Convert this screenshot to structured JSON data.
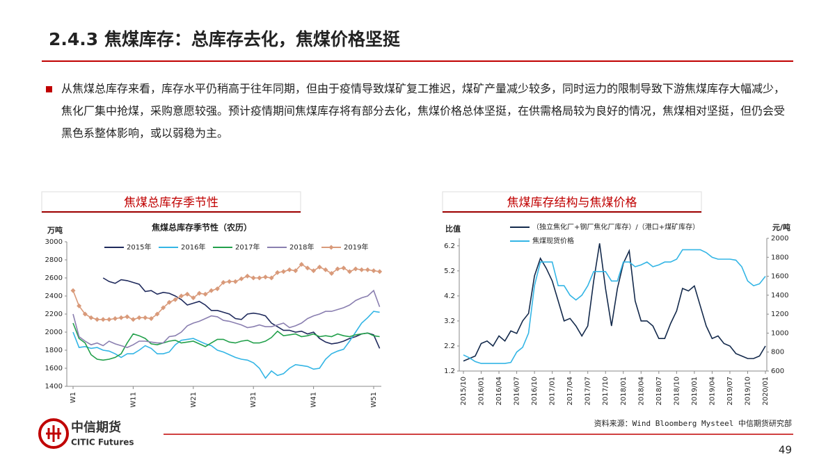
{
  "header": {
    "title": "2.4.3 焦煤库存：总库存去化，焦煤价格坚挺"
  },
  "bullet": "从焦煤总库存来看，库存水平仍稍高于往年同期，但由于疫情导致煤矿复工推迟，煤矿产量减少较多，同时运力的限制导致下游焦煤库存大幅减少，焦化厂集中抢煤，采购意愿较强。预计疫情期间焦煤库存将有部分去化，焦煤价格总体坚挺，在供需格局较为良好的情况，焦煤相对坚挺，但仍会受黑色系整体影响，或以弱稳为主。",
  "panels": [
    {
      "heading": "焦煤总库存季节性"
    },
    {
      "heading": "焦煤库存结构与焦煤价格"
    }
  ],
  "chart_data": [
    {
      "type": "line",
      "title": "焦煤总库存季节性（农历）",
      "y_label": "万吨",
      "categories": [
        "W1",
        null,
        null,
        null,
        null,
        null,
        null,
        null,
        null,
        null,
        "W11",
        null,
        null,
        null,
        null,
        null,
        null,
        null,
        null,
        null,
        "W21",
        null,
        null,
        null,
        null,
        null,
        null,
        null,
        null,
        null,
        "W31",
        null,
        null,
        null,
        null,
        null,
        null,
        null,
        null,
        null,
        "W41",
        null,
        null,
        null,
        null,
        null,
        null,
        null,
        null,
        null,
        "W51",
        null
      ],
      "ylim": [
        1400,
        3000
      ],
      "yticks": [
        1400,
        1600,
        1800,
        2000,
        2200,
        2400,
        2600,
        2800,
        3000
      ],
      "series": [
        {
          "name": "2015年",
          "color": "#1f2a5c",
          "values": [
            null,
            null,
            null,
            null,
            null,
            2600,
            2560,
            2540,
            2580,
            2570,
            2550,
            2530,
            2450,
            2460,
            2420,
            2440,
            2430,
            2400,
            2360,
            2300,
            2320,
            2340,
            2300,
            2240,
            2240,
            2220,
            2200,
            2150,
            2140,
            2200,
            2210,
            2200,
            2180,
            2100,
            2060,
            2020,
            2020,
            2000,
            2010,
            1980,
            2000,
            1930,
            1890,
            1870,
            1880,
            1900,
            1930,
            1950,
            1980,
            1990,
            1970,
            1820
          ]
        },
        {
          "name": "2016年",
          "color": "#33b5e5",
          "values": [
            2000,
            1830,
            1840,
            1820,
            1830,
            1800,
            1790,
            1760,
            1720,
            1760,
            1760,
            1800,
            1850,
            1820,
            1760,
            1760,
            1780,
            1860,
            1910,
            1920,
            1930,
            1900,
            1870,
            1850,
            1800,
            1780,
            1750,
            1720,
            1700,
            1690,
            1660,
            1600,
            1490,
            1570,
            1520,
            1540,
            1600,
            1640,
            1630,
            1620,
            1590,
            1600,
            1700,
            1760,
            1790,
            1810,
            1900,
            2000,
            2100,
            2160,
            2230,
            2220
          ]
        },
        {
          "name": "2017年",
          "color": "#22a04b",
          "values": [
            2100,
            1930,
            1880,
            1750,
            1700,
            1690,
            1700,
            1720,
            1760,
            1880,
            1980,
            1960,
            1930,
            1870,
            1860,
            1880,
            1900,
            1910,
            1880,
            1890,
            1900,
            1870,
            1840,
            1880,
            1920,
            1920,
            1890,
            1880,
            1900,
            1910,
            1880,
            1880,
            1900,
            1940,
            2010,
            1960,
            1970,
            1980,
            1950,
            1960,
            1980,
            1950,
            1960,
            1950,
            1980,
            1960,
            1950,
            1970,
            1980,
            1990,
            1960,
            1950
          ]
        },
        {
          "name": "2018年",
          "color": "#8a7fb0",
          "values": [
            2200,
            1950,
            1900,
            1860,
            1880,
            1850,
            1900,
            1870,
            1850,
            1830,
            1860,
            1900,
            1900,
            1890,
            1880,
            1880,
            1950,
            1960,
            2000,
            2070,
            2100,
            2120,
            2150,
            2180,
            2170,
            2130,
            2120,
            2100,
            2080,
            2050,
            2060,
            2080,
            2060,
            2060,
            2080,
            2100,
            2050,
            2070,
            2100,
            2150,
            2180,
            2200,
            2230,
            2230,
            2250,
            2270,
            2300,
            2350,
            2380,
            2400,
            2460,
            2280
          ]
        },
        {
          "name": "2019年",
          "color": "#d99a7a",
          "marker": "diamond",
          "values": [
            2460,
            2290,
            2200,
            2160,
            2140,
            2140,
            2140,
            2150,
            2160,
            2170,
            2140,
            2160,
            2160,
            2150,
            2200,
            2270,
            2330,
            2360,
            2400,
            2420,
            2380,
            2430,
            2420,
            2460,
            2480,
            2550,
            2560,
            2560,
            2590,
            2620,
            2600,
            2600,
            2610,
            2600,
            2660,
            2670,
            2690,
            2680,
            2750,
            2710,
            2680,
            2720,
            2690,
            2650,
            2700,
            2710,
            2670,
            2700,
            2690,
            2690,
            2680,
            2670
          ]
        }
      ]
    },
    {
      "type": "line",
      "y_label": "比值",
      "y2_label": "元/吨",
      "categories": [
        "2015/10",
        null,
        null,
        "2016/01",
        null,
        null,
        "2016/04",
        null,
        null,
        "2016/07",
        null,
        null,
        "2016/10",
        null,
        null,
        "2017/01",
        null,
        null,
        "2017/04",
        null,
        null,
        "2017/07",
        null,
        null,
        "2017/10",
        null,
        null,
        "2018/01",
        null,
        null,
        "2018/04",
        null,
        null,
        "2018/07",
        null,
        null,
        "2018/10",
        null,
        null,
        "2019/01",
        null,
        null,
        "2019/04",
        null,
        null,
        "2019/07",
        null,
        null,
        "2019/10",
        null,
        null,
        "2020/01"
      ],
      "ylim": [
        1.2,
        6.5
      ],
      "yticks": [
        1.2,
        2.2,
        3.2,
        4.2,
        5.2,
        6.2
      ],
      "y2lim": [
        600,
        2000
      ],
      "y2ticks": [
        600,
        800,
        1000,
        1200,
        1400,
        1600,
        1800,
        2000
      ],
      "series": [
        {
          "name": "（独立焦化厂+钢厂焦化厂库存）/（港口+煤矿库存）",
          "color": "#13294b",
          "values": [
            1.6,
            1.7,
            1.8,
            2.3,
            2.4,
            2.2,
            2.6,
            2.4,
            2.8,
            2.7,
            3.2,
            3.5,
            5.0,
            5.7,
            5.3,
            4.8,
            4.0,
            3.2,
            3.3,
            3.0,
            2.6,
            3.0,
            4.8,
            6.3,
            4.5,
            3.0,
            4.5,
            5.5,
            6.0,
            4.0,
            3.2,
            3.2,
            3.0,
            2.5,
            2.5,
            3.1,
            3.6,
            4.5,
            4.4,
            4.6,
            3.8,
            3.0,
            2.5,
            2.6,
            2.3,
            2.2,
            1.9,
            1.8,
            1.7,
            1.7,
            1.8,
            2.2
          ]
        },
        {
          "name": "焦煤现货价格",
          "color": "#33b5e5",
          "axis": "y2",
          "values": [
            770,
            740,
            700,
            680,
            680,
            680,
            680,
            680,
            690,
            800,
            850,
            1000,
            1500,
            1750,
            1750,
            1750,
            1500,
            1500,
            1400,
            1350,
            1400,
            1500,
            1650,
            1650,
            1650,
            1550,
            1550,
            1750,
            1750,
            1700,
            1720,
            1750,
            1700,
            1720,
            1750,
            1750,
            1780,
            1880,
            1880,
            1880,
            1880,
            1850,
            1800,
            1780,
            1780,
            1780,
            1770,
            1700,
            1550,
            1500,
            1520,
            1600
          ]
        }
      ]
    }
  ],
  "footer": {
    "source": "资料来源：Wind Bloomberg Mysteel 中信期货研究部",
    "logo_cn": "中信期货",
    "logo_en": "CITIC Futures",
    "page": "49"
  }
}
